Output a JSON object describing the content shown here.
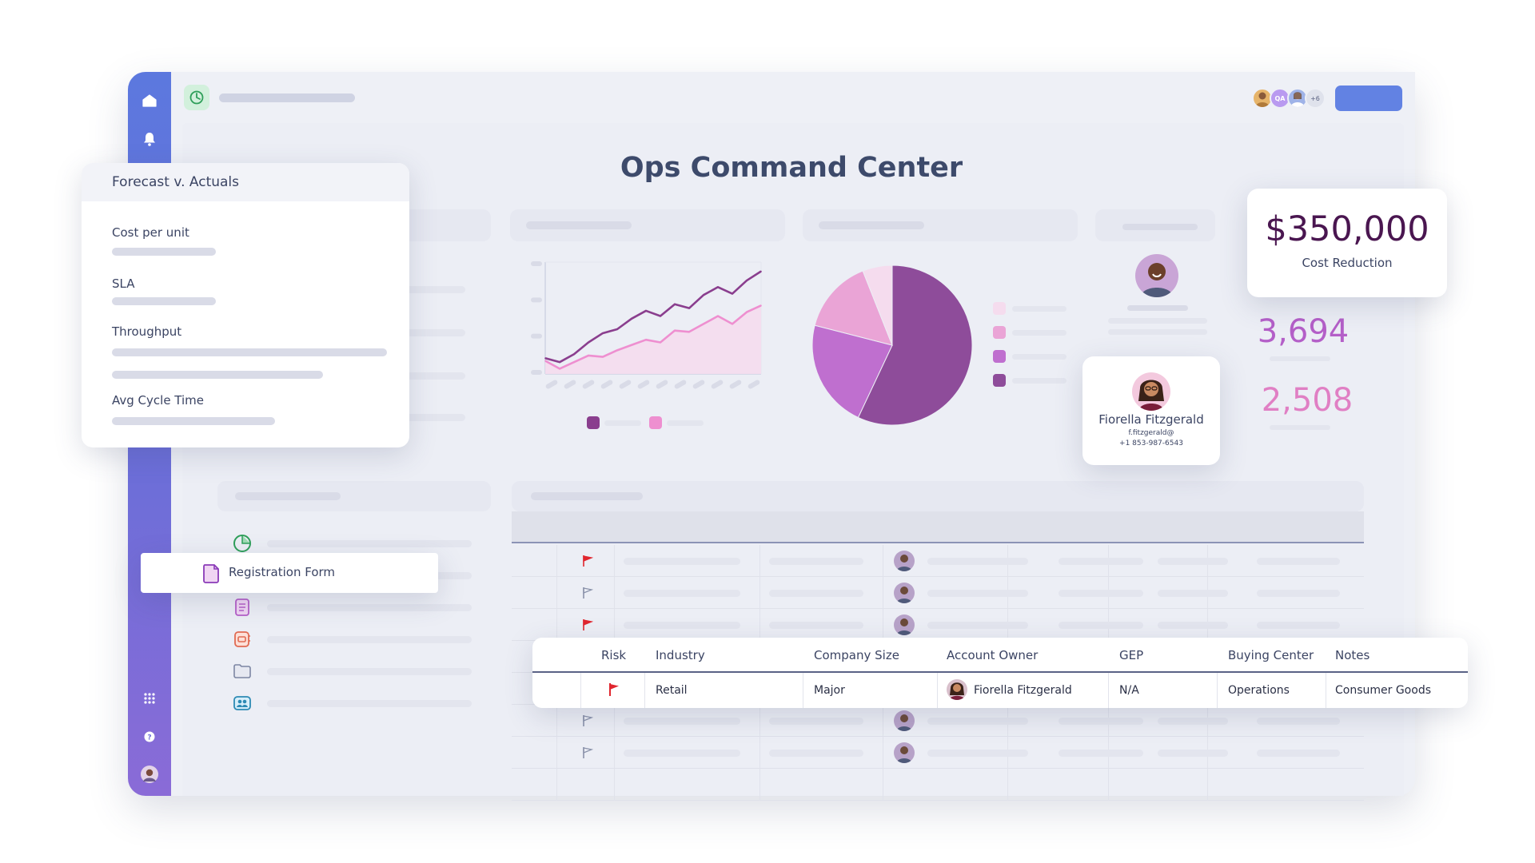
{
  "dashboard": {
    "title": "Ops Command Center"
  },
  "topbar": {
    "avatars": [
      {
        "icon": "avatar-photo",
        "color": "#e6b46a"
      },
      {
        "initials": "QA",
        "color": "#b99af0"
      },
      {
        "icon": "avatar-photo",
        "color": "#9fb3e8"
      }
    ],
    "more_count": "+6"
  },
  "forecast_card": {
    "title": "Forecast v. Actuals",
    "metrics": [
      "Cost per unit",
      "SLA",
      "Throughput",
      "Avg Cycle Time"
    ]
  },
  "cost_card": {
    "value": "$350,000",
    "label": "Cost Reduction"
  },
  "stats": {
    "primary": "3,694",
    "secondary": "2,508"
  },
  "contact_card": {
    "name": "Fiorella Fitzgerald",
    "email": "f.fitzgerald@",
    "phone": "+1 853-987-6543"
  },
  "form_item": {
    "label": "Registration Form"
  },
  "table": {
    "columns": [
      "Risk",
      "Industry",
      "Company Size",
      "Account Owner",
      "GEP",
      "Buying Center",
      "Notes"
    ],
    "row": {
      "risk": "flag",
      "industry": "Retail",
      "company_size": "Major",
      "account_owner": "Fiorella Fitzgerald",
      "gep": "N/A",
      "buying_center": "Operations",
      "notes": "Consumer Goods"
    }
  },
  "colors": {
    "title": "#3d4a6b",
    "cost_value": "#4a1650",
    "stat_primary": "#b45fc8",
    "stat_secondary": "#e07fc4",
    "line_dark": "#8a3e8e",
    "line_light": "#ee8fd0",
    "flag_red": "#e0262f"
  },
  "chart_data": [
    {
      "type": "line",
      "x": [
        1,
        2,
        3,
        4,
        5,
        6,
        7,
        8,
        9,
        10,
        11,
        12,
        13,
        14,
        15,
        16
      ],
      "series": [
        {
          "values": [
            12,
            9,
            15,
            24,
            31,
            34,
            42,
            48,
            44,
            53,
            50,
            60,
            66,
            61,
            71,
            78
          ]
        },
        {
          "values": [
            10,
            4,
            9,
            14,
            13,
            18,
            22,
            26,
            24,
            33,
            32,
            38,
            44,
            38,
            47,
            52
          ]
        }
      ],
      "ylim": [
        0,
        85
      ],
      "grid": false
    },
    {
      "type": "pie",
      "values": [
        57,
        22,
        15,
        6
      ],
      "colors": [
        "#8e4c9a",
        "#bf6fcf",
        "#eaa4d6",
        "#f5dcee"
      ]
    }
  ]
}
